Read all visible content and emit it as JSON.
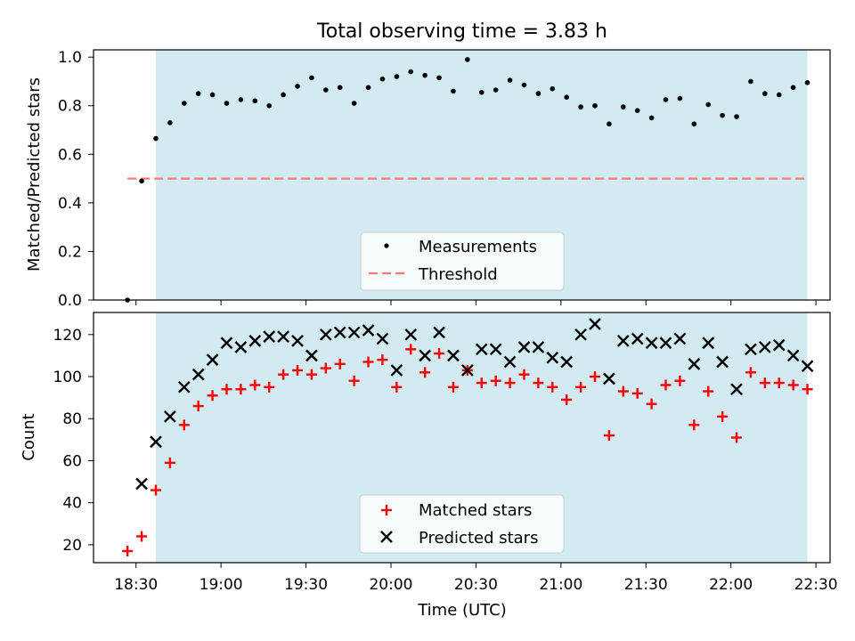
{
  "title": "Total observing time = 3.83 h",
  "chart_data": [
    {
      "type": "scatter",
      "ylabel": "Matched/Predicted stars",
      "ylim": [
        0,
        1.03
      ],
      "yticks": [
        0.0,
        0.2,
        0.4,
        0.6,
        0.8,
        1.0
      ],
      "ytick_labels": [
        "0.0",
        "0.2",
        "0.4",
        "0.6",
        "0.8",
        "1.0"
      ],
      "xlim": [
        "18:15",
        "22:35"
      ],
      "shaded_span": [
        "18:37",
        "22:27"
      ],
      "shade_color": "#add8e6",
      "threshold": {
        "name": "Threshold",
        "value": 0.5,
        "x_range": [
          "18:27",
          "22:27"
        ],
        "color": "#ff7777"
      },
      "legend": {
        "position": "lower-center",
        "entries": [
          "Measurements",
          "Threshold"
        ]
      },
      "series": [
        {
          "name": "Measurements",
          "color": "#000000",
          "x": [
            "18:27",
            "18:32",
            "18:37",
            "18:42",
            "18:47",
            "18:52",
            "18:57",
            "19:02",
            "19:07",
            "19:12",
            "19:17",
            "19:22",
            "19:27",
            "19:32",
            "19:37",
            "19:42",
            "19:47",
            "19:52",
            "19:57",
            "20:02",
            "20:07",
            "20:12",
            "20:17",
            "20:22",
            "20:27",
            "20:32",
            "20:37",
            "20:42",
            "20:47",
            "20:52",
            "20:57",
            "21:02",
            "21:07",
            "21:12",
            "21:17",
            "21:22",
            "21:27",
            "21:32",
            "21:37",
            "21:42",
            "21:47",
            "21:52",
            "21:57",
            "22:02",
            "22:07",
            "22:12",
            "22:17",
            "22:22",
            "22:27"
          ],
          "y": [
            0.0,
            0.49,
            0.665,
            0.73,
            0.81,
            0.85,
            0.845,
            0.81,
            0.825,
            0.82,
            0.8,
            0.845,
            0.88,
            0.915,
            0.865,
            0.875,
            0.81,
            0.875,
            0.91,
            0.92,
            0.94,
            0.925,
            0.915,
            0.86,
            0.99,
            0.855,
            0.865,
            0.905,
            0.885,
            0.85,
            0.87,
            0.835,
            0.795,
            0.8,
            0.725,
            0.795,
            0.78,
            0.75,
            0.825,
            0.83,
            0.725,
            0.805,
            0.76,
            0.755,
            0.9,
            0.85,
            0.845,
            0.875,
            0.895
          ]
        }
      ]
    },
    {
      "type": "scatter",
      "ylabel": "Count",
      "xlabel": "Time (UTC)",
      "ylim": [
        11.5,
        130.5
      ],
      "yticks": [
        20,
        40,
        60,
        80,
        100,
        120
      ],
      "ytick_labels": [
        "20",
        "40",
        "60",
        "80",
        "100",
        "120"
      ],
      "xlim": [
        "18:15",
        "22:35"
      ],
      "xticks": [
        "18:30",
        "19:00",
        "19:30",
        "20:00",
        "20:30",
        "21:00",
        "21:30",
        "22:00",
        "22:30"
      ],
      "shaded_span": [
        "18:37",
        "22:27"
      ],
      "shade_color": "#add8e6",
      "legend": {
        "position": "lower-center",
        "entries": [
          "Matched stars",
          "Predicted stars"
        ]
      },
      "series": [
        {
          "name": "Matched stars",
          "marker": "plus",
          "color": "#ff0000",
          "x": [
            "18:27",
            "18:32",
            "18:37",
            "18:42",
            "18:47",
            "18:52",
            "18:57",
            "19:02",
            "19:07",
            "19:12",
            "19:17",
            "19:22",
            "19:27",
            "19:32",
            "19:37",
            "19:42",
            "19:47",
            "19:52",
            "19:57",
            "20:02",
            "20:07",
            "20:12",
            "20:17",
            "20:22",
            "20:27",
            "20:32",
            "20:37",
            "20:42",
            "20:47",
            "20:52",
            "20:57",
            "21:02",
            "21:07",
            "21:12",
            "21:17",
            "21:22",
            "21:27",
            "21:32",
            "21:37",
            "21:42",
            "21:47",
            "21:52",
            "21:57",
            "22:02",
            "22:07",
            "22:12",
            "22:17",
            "22:22",
            "22:27"
          ],
          "y": [
            17,
            24,
            46,
            59,
            77,
            86,
            91,
            94,
            94,
            96,
            95,
            101,
            103,
            101,
            104,
            106,
            98,
            107,
            108,
            95,
            113,
            102,
            111,
            95,
            103,
            97,
            98,
            97,
            101,
            97,
            95,
            89,
            95,
            100,
            72,
            93,
            92,
            87,
            96,
            98,
            77,
            93,
            81,
            71,
            102,
            97,
            97,
            96,
            94
          ]
        },
        {
          "name": "Predicted stars",
          "marker": "x",
          "color": "#000000",
          "x": [
            "18:32",
            "18:37",
            "18:42",
            "18:47",
            "18:52",
            "18:57",
            "19:02",
            "19:07",
            "19:12",
            "19:17",
            "19:22",
            "19:27",
            "19:32",
            "19:37",
            "19:42",
            "19:47",
            "19:52",
            "19:57",
            "20:02",
            "20:07",
            "20:12",
            "20:17",
            "20:22",
            "20:27",
            "20:32",
            "20:37",
            "20:42",
            "20:47",
            "20:52",
            "20:57",
            "21:02",
            "21:07",
            "21:12",
            "21:17",
            "21:22",
            "21:27",
            "21:32",
            "21:37",
            "21:42",
            "21:47",
            "21:52",
            "21:57",
            "22:02",
            "22:07",
            "22:12",
            "22:17",
            "22:22",
            "22:27"
          ],
          "y": [
            49,
            69,
            81,
            95,
            101,
            108,
            116,
            114,
            117,
            119,
            119,
            117,
            110,
            120,
            121,
            121,
            122,
            118,
            103,
            120,
            110,
            121,
            110,
            103,
            113,
            113,
            107,
            114,
            114,
            109,
            107,
            120,
            125,
            99,
            117,
            118,
            116,
            116,
            118,
            106,
            116,
            107,
            94,
            113,
            114,
            115,
            110,
            105
          ]
        }
      ]
    }
  ]
}
